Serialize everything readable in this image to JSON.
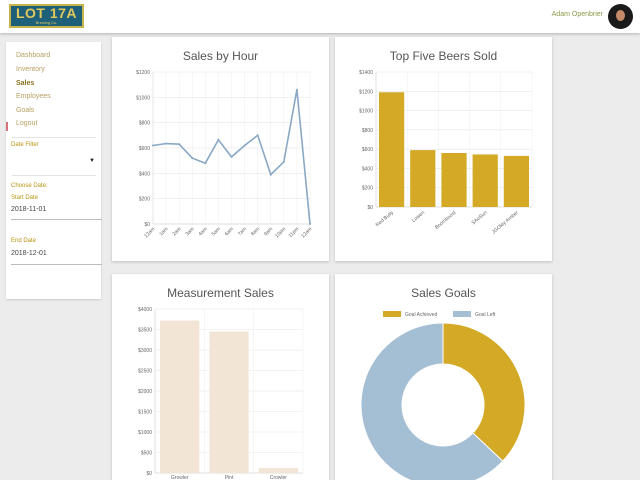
{
  "header": {
    "logo_main": "LOT 17A",
    "logo_sub": "Brewing Co.",
    "user_name": "Adam Openbrier"
  },
  "sidebar": {
    "items": [
      {
        "label": "Dashboard",
        "active": false
      },
      {
        "label": "Inventory",
        "active": false
      },
      {
        "label": "Sales",
        "active": true
      },
      {
        "label": "Employees",
        "active": false
      },
      {
        "label": "Goals",
        "active": false
      },
      {
        "label": "Logout",
        "active": false
      }
    ],
    "date_filter_label": "Date Filter",
    "date_filter_value": "",
    "choose_date_label": "Choose Date:",
    "start_date_label": "Start Date",
    "start_date_value": "2018-11-01",
    "end_date_label": "End Date",
    "end_date_value": "2018-12-01"
  },
  "colors": {
    "line": "#8aa8c4",
    "gold": "#d3a926",
    "cream": "#f3e5d6",
    "goal_left": "#a4bed4"
  },
  "charts": {
    "sales_by_hour_title": "Sales by Hour",
    "top_beers_title": "Top Five Beers Sold",
    "measurement_title": "Measurement Sales",
    "goals_title": "Sales Goals"
  },
  "chart_data": [
    {
      "type": "line",
      "title": "Sales by Hour",
      "categories": [
        "12am",
        "1am",
        "2am",
        "3am",
        "4am",
        "5am",
        "6am",
        "7am",
        "8am",
        "9am",
        "10pm",
        "11pm",
        "12am"
      ],
      "values": [
        620,
        635,
        630,
        520,
        480,
        665,
        530,
        620,
        700,
        390,
        490,
        1060,
        0
      ],
      "ylim": [
        0,
        1200
      ],
      "yticks": [
        "$0",
        "$200",
        "$400",
        "$600",
        "$800",
        "$1000",
        "$1200"
      ],
      "grid": true
    },
    {
      "type": "bar",
      "title": "Top Five Beers Sold",
      "categories": [
        "Red Bully",
        "Lowen",
        "Boomboost",
        "SAoSun",
        "JGOkty Amber"
      ],
      "values": [
        1190,
        590,
        560,
        545,
        530
      ],
      "ylim": [
        0,
        1400
      ],
      "yticks": [
        "$0",
        "$200",
        "$400",
        "$600",
        "$800",
        "$1000",
        "$1200",
        "$1400"
      ],
      "grid": true
    },
    {
      "type": "bar",
      "title": "Measurement Sales",
      "categories": [
        "Growler",
        "Pint",
        "Crowler"
      ],
      "values": [
        3720,
        3450,
        120
      ],
      "ylim": [
        0,
        4000
      ],
      "yticks": [
        "$0",
        "$500",
        "$1000",
        "$1500",
        "$2000",
        "$2500",
        "$3000",
        "$3500",
        "$4000"
      ],
      "grid": true
    },
    {
      "type": "pie",
      "title": "Sales Goals",
      "legend": [
        "Goal Achieved",
        "Goal Left"
      ],
      "values": [
        37,
        63
      ],
      "legend_position": "top"
    }
  ]
}
